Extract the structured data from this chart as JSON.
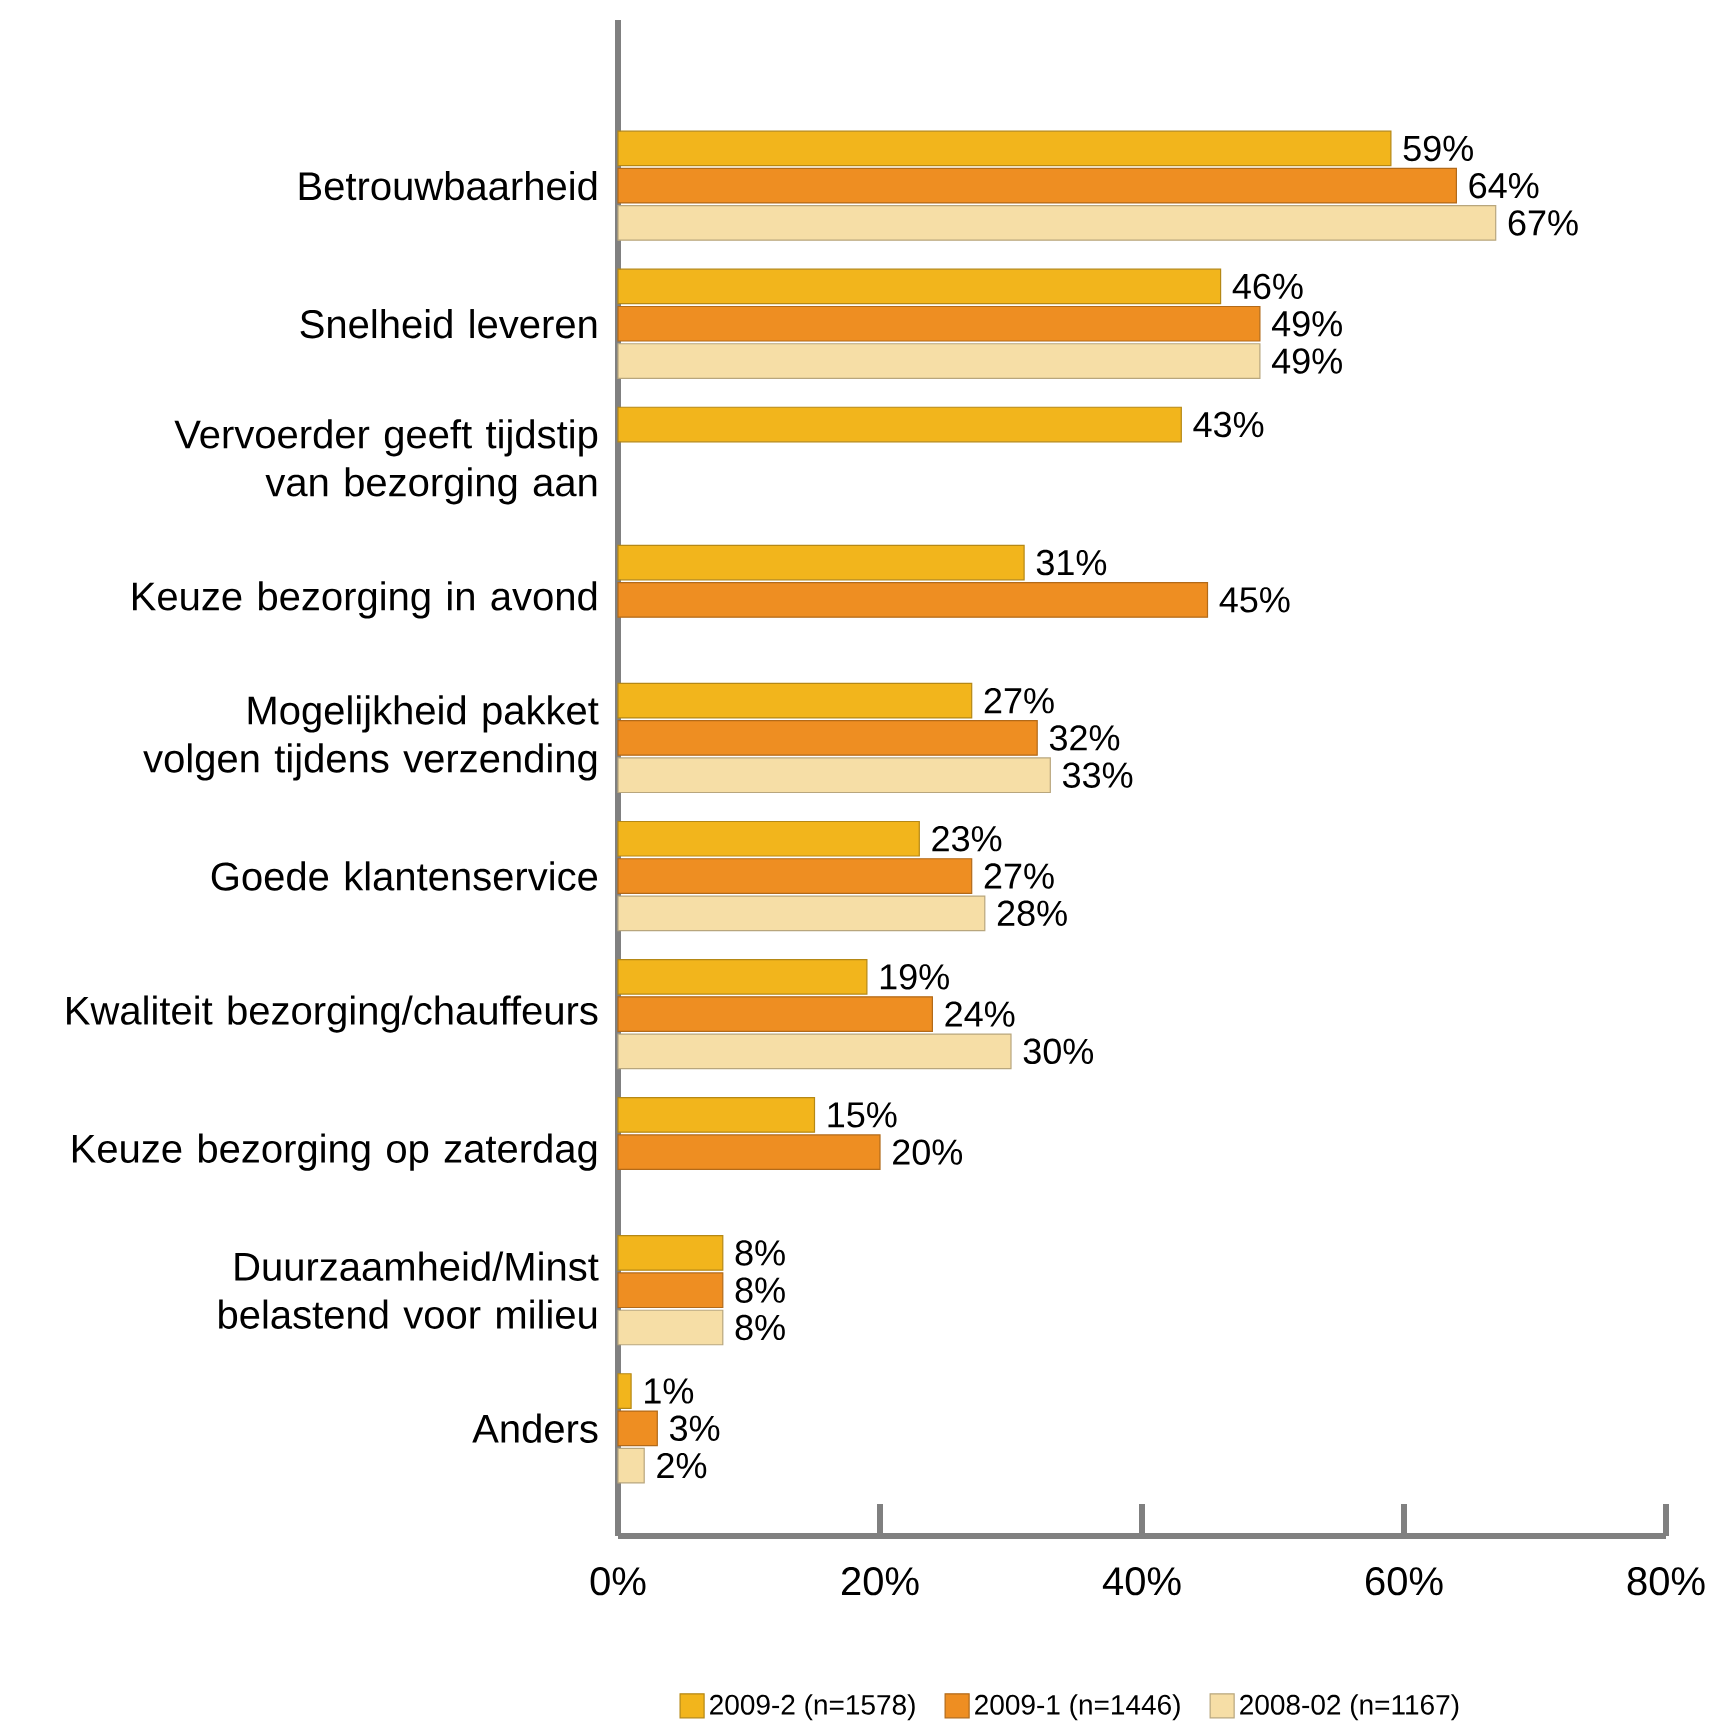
{
  "chart_data": {
    "type": "bar",
    "orientation": "horizontal",
    "categories": [
      "Betrouwbaarheid",
      "Snelheid leveren",
      "Vervoerder geeft tijdstip van bezorging aan",
      "Keuze bezorging in avond",
      "Mogelijkheid pakket volgen tijdens verzending",
      "Goede klantenservice",
      "Kwaliteit bezorging/chauffeurs",
      "Keuze bezorging op zaterdag",
      "Duurzaamheid/Minst belastend voor milieu",
      "Anders"
    ],
    "series": [
      {
        "name": "2009-2 (n=1578)",
        "color": "#f2b51c",
        "values": [
          59,
          46,
          43,
          31,
          27,
          23,
          19,
          15,
          8,
          1
        ],
        "value_labels": [
          "59%",
          "46%",
          "43%",
          "31%",
          "27%",
          "23%",
          "19%",
          "15%",
          "8%",
          "1%"
        ]
      },
      {
        "name": "2009-1 (n=1446)",
        "color": "#ee8e22",
        "values": [
          64,
          49,
          null,
          45,
          32,
          27,
          24,
          20,
          8,
          3
        ],
        "value_labels": [
          "64%",
          "49%",
          null,
          "45%",
          "32%",
          "27%",
          "24%",
          "20%",
          "8%",
          "3%"
        ]
      },
      {
        "name": "2008-02 (n=1167)",
        "color": "#f6dea6",
        "values": [
          67,
          49,
          null,
          null,
          33,
          28,
          30,
          null,
          8,
          2
        ],
        "value_labels": [
          "67%",
          "49%",
          null,
          null,
          "33%",
          "28%",
          "30%",
          null,
          "8%",
          "2%"
        ]
      }
    ],
    "xlim": [
      0,
      80
    ],
    "xticks": [
      {
        "value": 0,
        "label": "0%"
      },
      {
        "value": 20,
        "label": "20%"
      },
      {
        "value": 40,
        "label": "40%"
      },
      {
        "value": 60,
        "label": "60%"
      },
      {
        "value": 80,
        "label": "80%"
      }
    ],
    "legend": "bottom"
  }
}
